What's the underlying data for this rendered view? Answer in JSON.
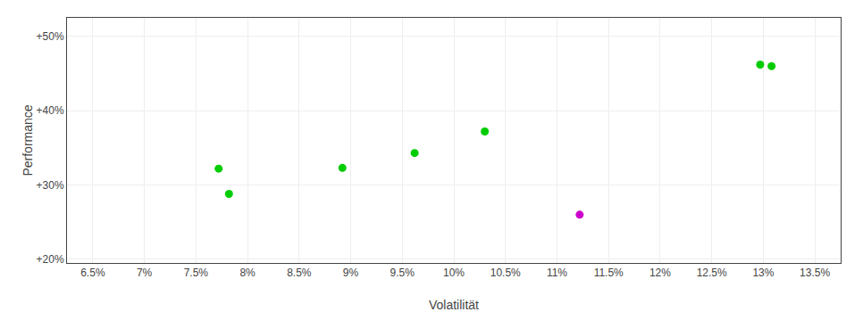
{
  "chart_data": {
    "type": "scatter",
    "x": [
      7.72,
      7.82,
      8.92,
      9.62,
      10.3,
      11.22,
      12.97,
      13.08
    ],
    "values": [
      32.2,
      28.8,
      32.3,
      34.3,
      37.2,
      26.0,
      46.2,
      46.0
    ],
    "colors": [
      "#00cc00",
      "#00cc00",
      "#00cc00",
      "#00cc00",
      "#00cc00",
      "#cc00cc",
      "#00cc00",
      "#00cc00"
    ],
    "marker": "circle",
    "xlabel": "Volatilität",
    "ylabel": "Performance",
    "xlim": [
      6.25,
      13.75
    ],
    "ylim": [
      19.5,
      52.5
    ],
    "xticks": [
      {
        "value": 6.5,
        "label": "6.5%"
      },
      {
        "value": 7.0,
        "label": "7%"
      },
      {
        "value": 7.5,
        "label": "7.5%"
      },
      {
        "value": 8.0,
        "label": "8%"
      },
      {
        "value": 8.5,
        "label": "8.5%"
      },
      {
        "value": 9.0,
        "label": "9%"
      },
      {
        "value": 9.5,
        "label": "9.5%"
      },
      {
        "value": 10.0,
        "label": "10%"
      },
      {
        "value": 10.5,
        "label": "10.5%"
      },
      {
        "value": 11.0,
        "label": "11%"
      },
      {
        "value": 11.5,
        "label": "11.5%"
      },
      {
        "value": 12.0,
        "label": "12%"
      },
      {
        "value": 12.5,
        "label": "12.5%"
      },
      {
        "value": 13.0,
        "label": "13%"
      },
      {
        "value": 13.5,
        "label": "13.5%"
      }
    ],
    "yticks": [
      {
        "value": 20,
        "label": "+20%"
      },
      {
        "value": 30,
        "label": "+30%"
      },
      {
        "value": 40,
        "label": "+40%"
      },
      {
        "value": 50,
        "label": "+50%"
      }
    ],
    "grid": true
  }
}
